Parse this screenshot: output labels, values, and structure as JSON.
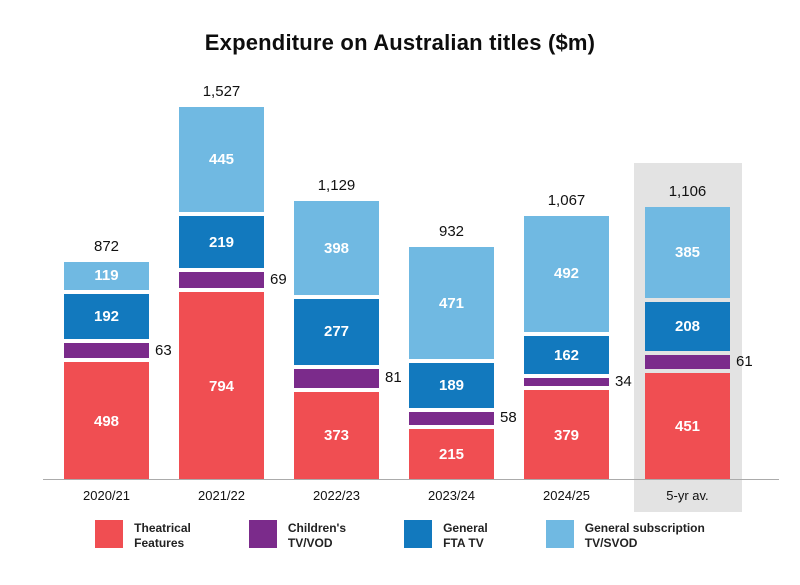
{
  "chart_data": {
    "type": "bar",
    "subtype": "stacked-vertical",
    "title": "Expenditure on Australian titles ($m)",
    "categories": [
      "2020/21",
      "2021/22",
      "2022/23",
      "2023/24",
      "2024/25",
      "5-yr av."
    ],
    "totals_display": [
      "872",
      "1,527",
      "1,129",
      "932",
      "1,067",
      "1,106"
    ],
    "series": [
      {
        "name": "Theatrical Features",
        "legend_lines": "Theatrical\nFeatures",
        "color": "#f04e52",
        "values": [
          498,
          794,
          373,
          215,
          379,
          451
        ],
        "label_position": "inside"
      },
      {
        "name": "Children's TV/VOD",
        "legend_lines": "Children's\nTV/VOD",
        "color": "#7b2b8b",
        "values": [
          63,
          69,
          81,
          58,
          34,
          61
        ],
        "label_position": "outside-right"
      },
      {
        "name": "General FTA TV",
        "legend_lines": "General\nFTA TV",
        "color": "#1279be",
        "values": [
          192,
          219,
          277,
          189,
          162,
          208
        ],
        "label_position": "inside"
      },
      {
        "name": "General subscription TV/SVOD",
        "legend_lines": "General subscription\nTV/SVOD",
        "color": "#70b9e2",
        "values": [
          119,
          445,
          398,
          471,
          492,
          385
        ],
        "label_position": "inside"
      }
    ],
    "highlight_category": "5-yr av.",
    "highlight_color": "#e3e3e3",
    "axis_line_color": "#ababab",
    "legend_position": "bottom",
    "grid": false,
    "value_label_color_inside": "#ffffff",
    "value_label_color_outside": "#111111"
  }
}
